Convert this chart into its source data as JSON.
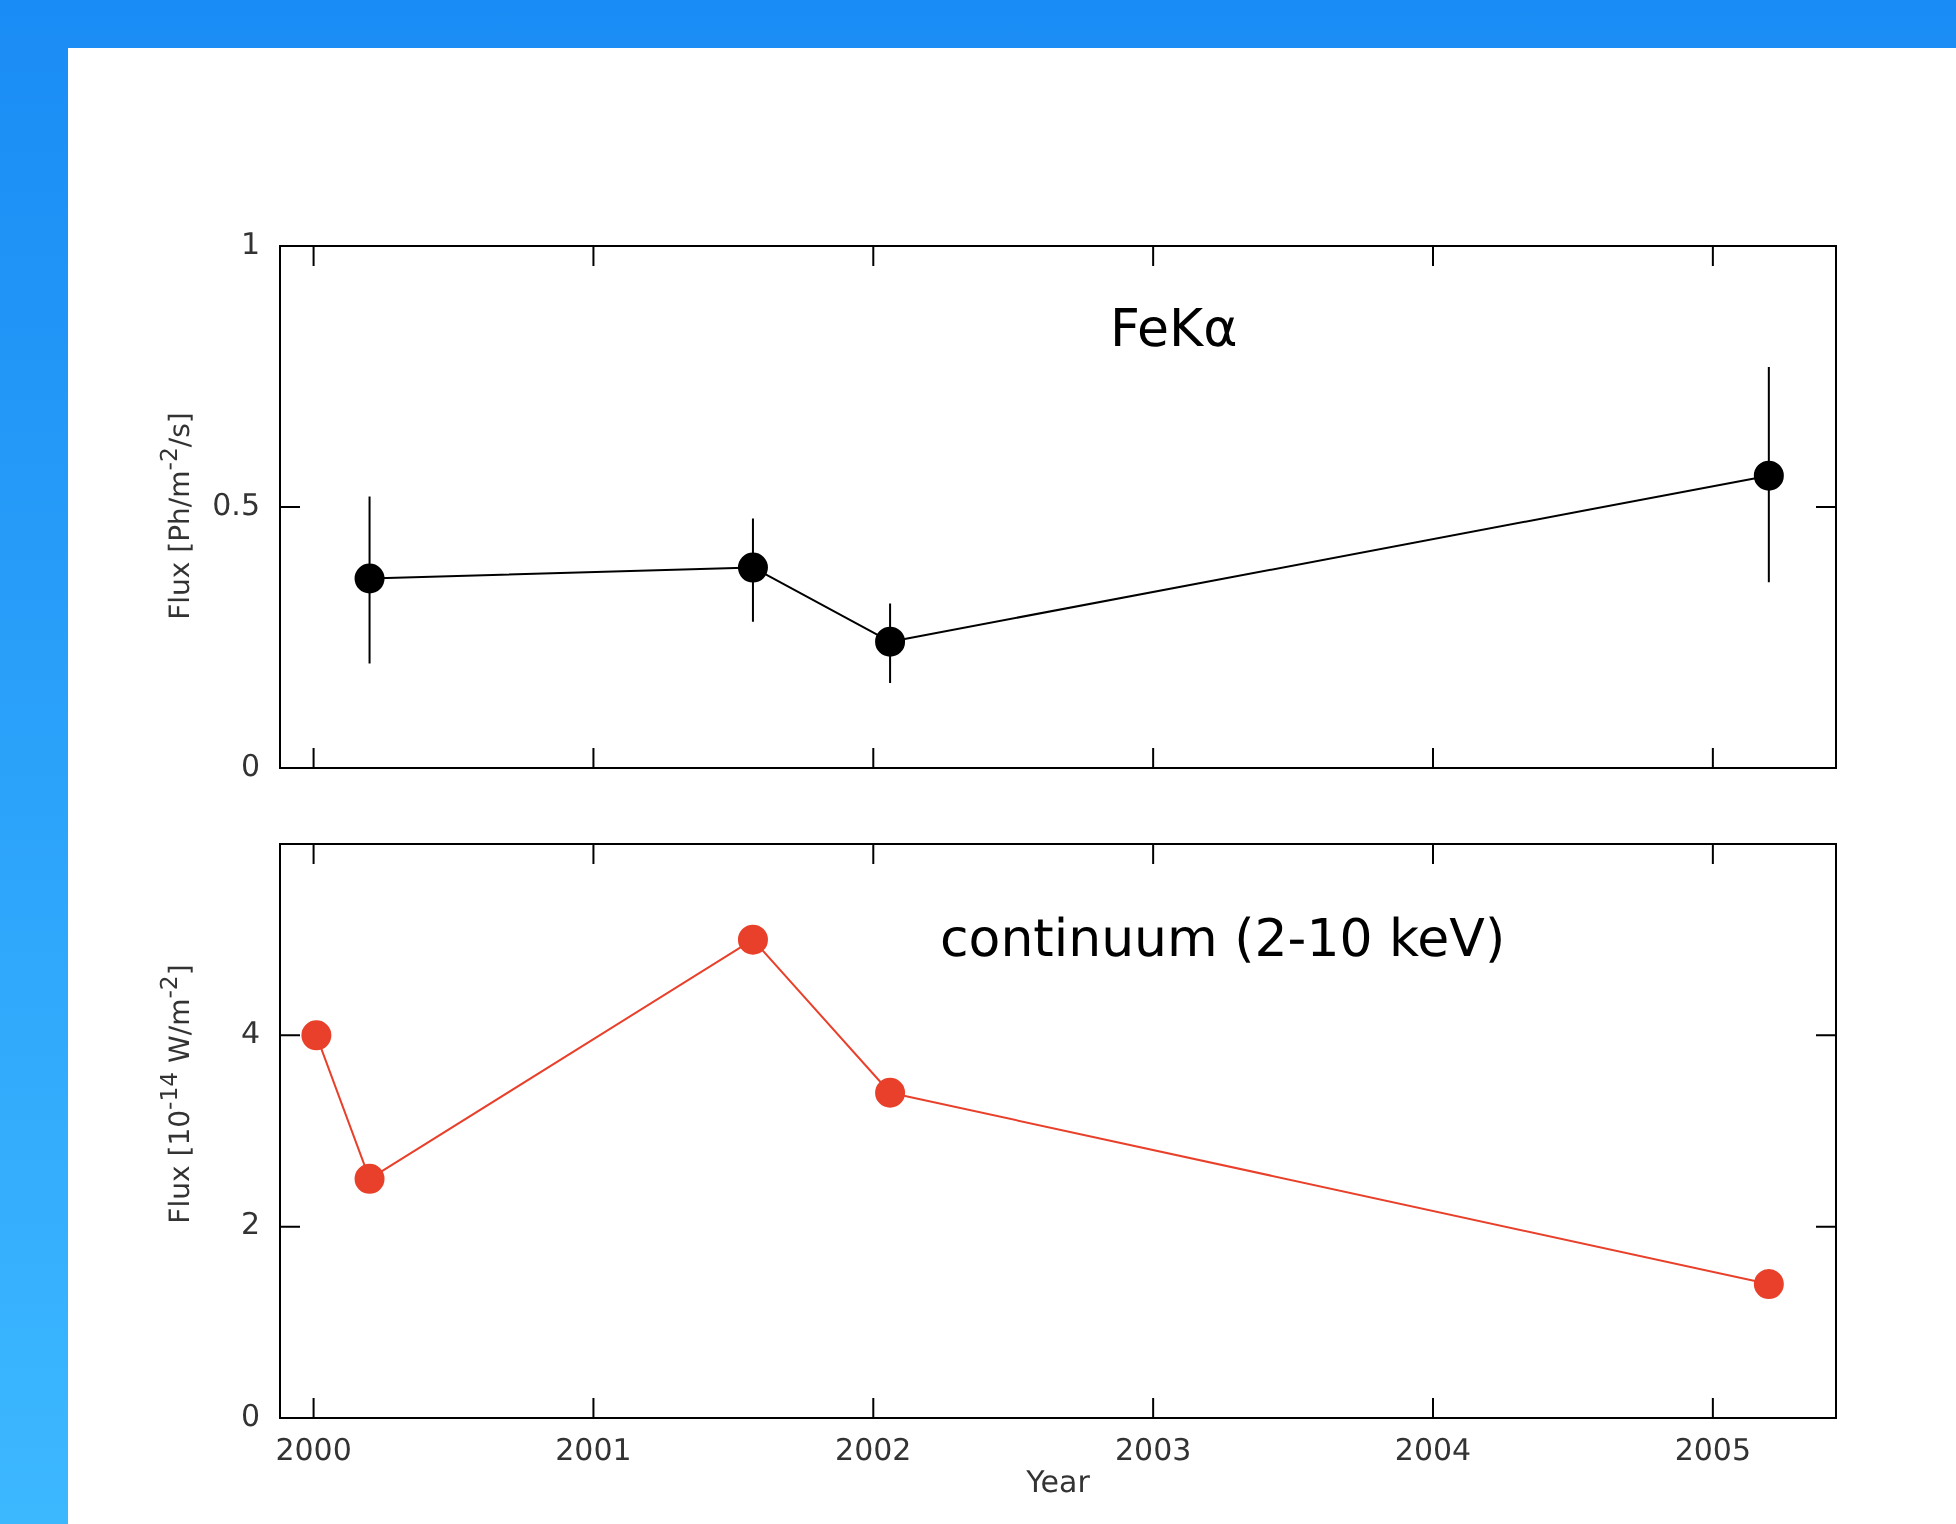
{
  "chart_data": [
    {
      "type": "line",
      "ylabel": "Flux [Ph/m$^{-2}$/s]",
      "annotations": [
        "FeKα"
      ],
      "x": [
        2000.2,
        2001.57,
        2002.06,
        2005.2
      ],
      "series": [
        {
          "color": "#000000",
          "values": [
            0.363,
            0.384,
            0.242,
            0.56
          ],
          "errors": [
            [
              0.2,
              0.52
            ],
            [
              0.28,
              0.478
            ],
            [
              0.163,
              0.315
            ],
            [
              0.356,
              0.768
            ]
          ]
        }
      ],
      "xlim": [
        1999.88,
        2005.44
      ],
      "xticks": [
        2000,
        2001,
        2002,
        2003,
        2004,
        2005
      ],
      "ylim": [
        0,
        1
      ],
      "yticks": [
        0,
        0.5,
        1
      ],
      "tick_labels": "y",
      "grid": false,
      "legend": false,
      "marker": "circle"
    },
    {
      "type": "line",
      "xlabel": "Year",
      "ylabel": "Flux [10$^{-14}$ W/m$^{-2}$]",
      "annotations": [
        "continuum (2-10 keV)"
      ],
      "x": [
        2000.01,
        2000.2,
        2001.57,
        2002.06,
        2005.2
      ],
      "series": [
        {
          "color": "#e8402a",
          "values": [
            4.0,
            2.5,
            5.0,
            3.4,
            1.4
          ]
        }
      ],
      "xlim": [
        1999.88,
        2005.44
      ],
      "xticks": [
        2000,
        2001,
        2002,
        2003,
        2004,
        2005
      ],
      "ylim": [
        0,
        6
      ],
      "yticks": [
        0,
        2,
        4
      ],
      "grid": false,
      "legend": false,
      "marker": "circle"
    }
  ]
}
